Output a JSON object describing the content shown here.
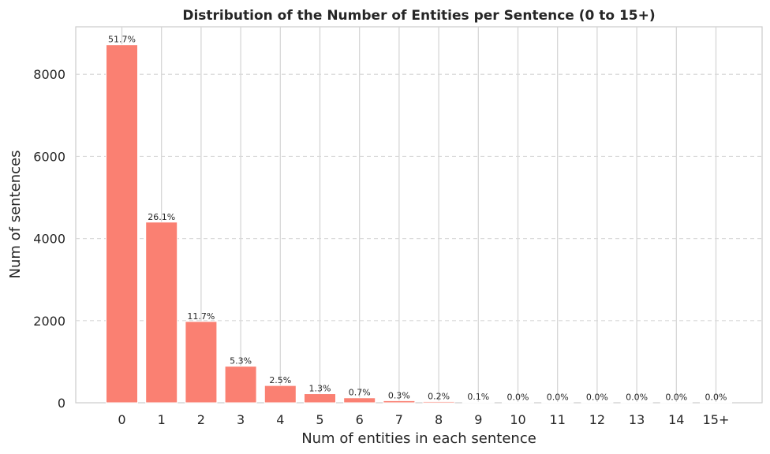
{
  "chart_data": {
    "type": "bar",
    "title": "Distribution of the Number of Entities per Sentence (0 to 15+)",
    "xlabel": "Num of entities in each sentence",
    "ylabel": "Num of sentences",
    "categories": [
      "0",
      "1",
      "2",
      "3",
      "4",
      "5",
      "6",
      "7",
      "8",
      "9",
      "10",
      "11",
      "12",
      "13",
      "14",
      "15+"
    ],
    "values": [
      8720,
      4400,
      1980,
      890,
      420,
      220,
      120,
      50,
      30,
      17,
      5,
      3,
      2,
      1,
      1,
      1
    ],
    "data_labels": [
      "51.7%",
      "26.1%",
      "11.7%",
      "5.3%",
      "2.5%",
      "1.3%",
      "0.7%",
      "0.3%",
      "0.2%",
      "0.1%",
      "0.0%",
      "0.0%",
      "0.0%",
      "0.0%",
      "0.0%",
      "0.0%"
    ],
    "yticks": [
      "0",
      "2000",
      "4000",
      "6000",
      "8000"
    ],
    "ylim": [
      0,
      9156
    ],
    "grid": "on",
    "bar_color": "#FA8072",
    "grid_color": "#d9d9d9",
    "axis_color": "#cccccc"
  }
}
